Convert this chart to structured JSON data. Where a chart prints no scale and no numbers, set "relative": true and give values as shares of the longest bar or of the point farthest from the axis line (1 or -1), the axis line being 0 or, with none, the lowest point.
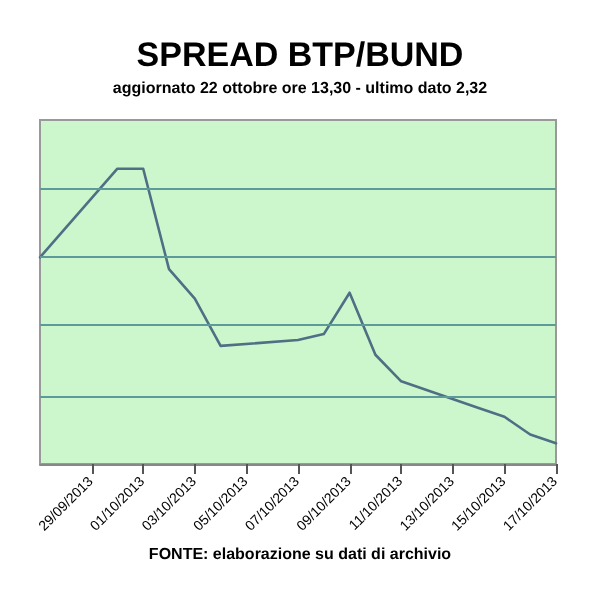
{
  "chart_data": {
    "type": "line",
    "title": "SPREAD BTP/BUND",
    "subtitle": "aggiornato 22 ottobre ore 13,30 - ultimo dato 2,32",
    "annotations": [
      "FONTE: elaborazione su dati di archivio"
    ],
    "relative": true,
    "ref_lines": [
      {
        "axis": "y",
        "value": 0.233,
        "color": "#5f9a9a"
      },
      {
        "axis": "y",
        "value": 0.466,
        "color": "#5f9a9a"
      },
      {
        "axis": "y",
        "value": 0.699,
        "color": "#5f9a9a"
      },
      {
        "axis": "y",
        "value": 0.932,
        "color": "#5f9a9a"
      }
    ],
    "marker": "none",
    "line_style": "solid",
    "xlim": [
      "2013-09-27",
      "2013-10-17"
    ],
    "xticks": [
      {
        "value": "2013-09-29",
        "label": "29/09/2013"
      },
      {
        "value": "2013-10-01",
        "label": "01/10/2013"
      },
      {
        "value": "2013-10-03",
        "label": "03/10/2013"
      },
      {
        "value": "2013-10-05",
        "label": "05/10/2013"
      },
      {
        "value": "2013-10-07",
        "label": "07/10/2013"
      },
      {
        "value": "2013-10-09",
        "label": "09/10/2013"
      },
      {
        "value": "2013-10-11",
        "label": "11/10/2013"
      },
      {
        "value": "2013-10-13",
        "label": "13/10/2013"
      },
      {
        "value": "2013-10-15",
        "label": "15/10/2013"
      },
      {
        "value": "2013-10-17",
        "label": "17/10/2013"
      }
    ],
    "x": [
      "2013-09-27",
      "2013-09-30",
      "2013-10-01",
      "2013-10-02",
      "2013-10-03",
      "2013-10-04",
      "2013-10-07",
      "2013-10-08",
      "2013-10-09",
      "2013-10-10",
      "2013-10-11",
      "2013-10-14",
      "2013-10-15",
      "2013-10-16",
      "2013-10-17"
    ],
    "series": [
      {
        "color": "#4f6f85",
        "values": [
          0.7,
          1.0,
          1.0,
          0.66,
          0.56,
          0.4,
          0.42,
          0.44,
          0.58,
          0.37,
          0.28,
          0.19,
          0.16,
          0.1,
          0.07
        ]
      }
    ]
  }
}
